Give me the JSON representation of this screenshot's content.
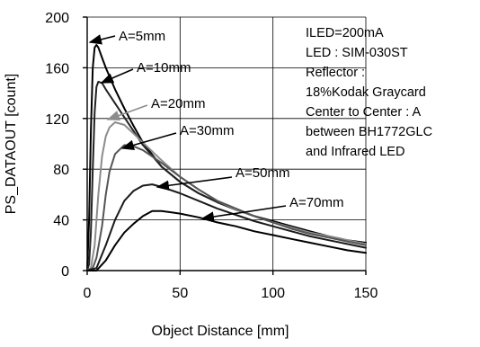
{
  "chart_data": {
    "type": "line",
    "title": "",
    "xlabel": "Object Distance [mm]",
    "ylabel": "PS_DATAOUT [count]",
    "xlim": [
      0,
      150
    ],
    "ylim": [
      0,
      200
    ],
    "xticks": [
      0,
      50,
      100,
      150
    ],
    "yticks": [
      0,
      40,
      80,
      120,
      160,
      200
    ],
    "grid": true,
    "notes": [
      "ILED=200mA",
      "LED : SIM-030ST",
      "Reflector :",
      "18%Kodak Graycard",
      "Center to Center : A",
      "between BH1772GLC",
      "and Infrared LED"
    ],
    "series": [
      {
        "name": "A=5mm",
        "color": "#000000",
        "x": [
          0,
          1,
          2,
          3,
          4,
          5,
          6,
          8,
          10,
          15,
          20,
          25,
          30,
          40,
          50,
          60,
          70,
          80,
          90,
          100,
          110,
          120,
          130,
          140,
          150
        ],
        "y": [
          0,
          40,
          110,
          160,
          176,
          178,
          176,
          168,
          160,
          143,
          128,
          114,
          101,
          82,
          70,
          61,
          54,
          48,
          43,
          39,
          35,
          31,
          27,
          24,
          22
        ]
      },
      {
        "name": "A=10mm",
        "color": "#222222",
        "x": [
          0,
          1,
          2,
          3,
          4,
          5,
          6,
          8,
          10,
          15,
          20,
          25,
          30,
          40,
          50,
          60,
          70,
          80,
          90,
          100,
          110,
          120,
          130,
          140,
          150
        ],
        "y": [
          0,
          5,
          30,
          80,
          125,
          145,
          149,
          148,
          143,
          132,
          121,
          110,
          99,
          82,
          70,
          61,
          54,
          48,
          43,
          38,
          34,
          30,
          27,
          24,
          21
        ]
      },
      {
        "name": "A=20mm",
        "color": "#8c8c8c",
        "x": [
          0,
          2,
          4,
          6,
          8,
          10,
          12,
          15,
          20,
          25,
          30,
          40,
          50,
          60,
          70,
          80,
          90,
          100,
          110,
          120,
          130,
          140,
          150
        ],
        "y": [
          0,
          2,
          20,
          60,
          90,
          106,
          113,
          117,
          115,
          108,
          101,
          87,
          74,
          64,
          55,
          48,
          43,
          38,
          34,
          30,
          27,
          24,
          21
        ]
      },
      {
        "name": "A=30mm",
        "color": "#555555",
        "x": [
          0,
          3,
          5,
          8,
          10,
          12,
          15,
          20,
          25,
          30,
          40,
          50,
          60,
          70,
          80,
          90,
          100,
          110,
          120,
          130,
          140,
          150
        ],
        "y": [
          0,
          2,
          10,
          35,
          60,
          78,
          92,
          99,
          98,
          95,
          85,
          74,
          64,
          55,
          49,
          43,
          38,
          33,
          29,
          26,
          23,
          20
        ]
      },
      {
        "name": "A=50mm",
        "color": "#1a1a1a",
        "x": [
          0,
          5,
          10,
          15,
          20,
          25,
          30,
          35,
          40,
          50,
          60,
          70,
          80,
          90,
          100,
          110,
          120,
          130,
          140,
          150
        ],
        "y": [
          0,
          2,
          20,
          40,
          55,
          63,
          67,
          68,
          66,
          61,
          55,
          49,
          44,
          39,
          35,
          31,
          27,
          24,
          21,
          18
        ]
      },
      {
        "name": "A=70mm",
        "color": "#000000",
        "x": [
          0,
          5,
          10,
          15,
          20,
          25,
          30,
          35,
          40,
          45,
          50,
          60,
          70,
          80,
          90,
          100,
          110,
          120,
          130,
          140,
          150
        ],
        "y": [
          0,
          0,
          8,
          20,
          30,
          37,
          43,
          47,
          47,
          46,
          45,
          42,
          38,
          35,
          31,
          28,
          25,
          22,
          19,
          16,
          14
        ]
      }
    ]
  }
}
